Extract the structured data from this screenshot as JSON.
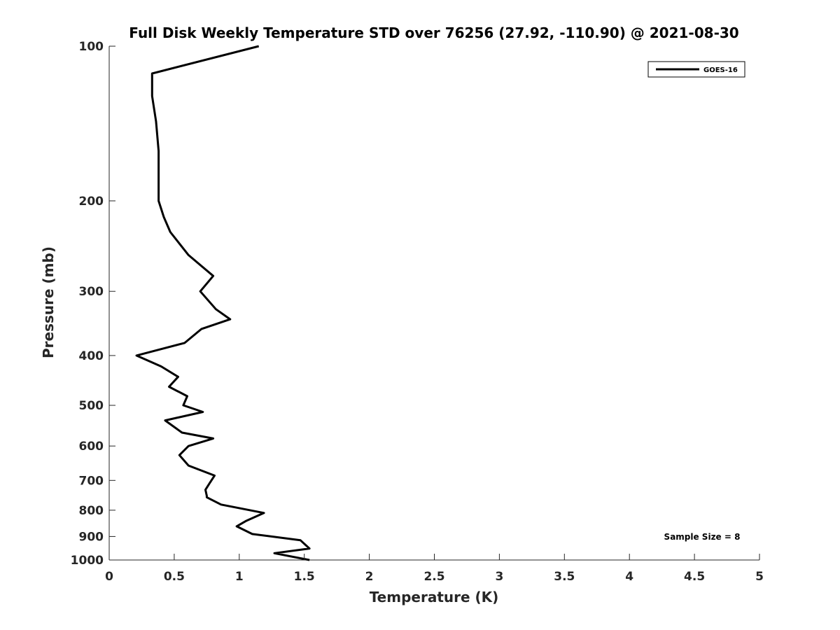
{
  "chart_data": {
    "type": "line",
    "title": "Full Disk Weekly Temperature STD over 76256 (27.92, -110.90) @ 2021-08-30",
    "xlabel": "Temperature (K)",
    "ylabel": "Pressure (mb)",
    "xlim": [
      0,
      5
    ],
    "ylim": [
      100,
      1000
    ],
    "y_scale": "log",
    "y_reversed": true,
    "x_ticks": [
      "0",
      "0.5",
      "1",
      "1.5",
      "2",
      "2.5",
      "3",
      "3.5",
      "4",
      "4.5",
      "5"
    ],
    "y_ticks": [
      "100",
      "200",
      "300",
      "400",
      "500",
      "600",
      "700",
      "800",
      "900",
      "1000"
    ],
    "grid": false,
    "legend_position": "top-right",
    "annotation": "Sample Size = 8",
    "series": [
      {
        "name": "GOES-16",
        "color": "#000000",
        "x": [
          1.15,
          0.33,
          0.33,
          0.36,
          0.38,
          0.38,
          0.38,
          0.42,
          0.47,
          0.61,
          0.8,
          0.7,
          0.82,
          0.93,
          0.71,
          0.58,
          0.21,
          0.4,
          0.53,
          0.46,
          0.6,
          0.57,
          0.72,
          0.43,
          0.56,
          0.8,
          0.61,
          0.54,
          0.61,
          0.81,
          0.77,
          0.74,
          0.75,
          0.75,
          0.86,
          1.19,
          1.05,
          0.98,
          1.1,
          1.47,
          1.54,
          1.27,
          1.54
        ],
        "y": [
          100,
          113,
          125,
          140,
          160,
          180,
          200,
          215,
          230,
          255,
          280,
          300,
          325,
          340,
          355,
          378,
          400,
          420,
          440,
          460,
          480,
          500,
          515,
          535,
          565,
          580,
          600,
          625,
          655,
          685,
          710,
          730,
          750,
          755,
          780,
          810,
          840,
          860,
          890,
          915,
          950,
          970,
          1000
        ]
      }
    ]
  }
}
